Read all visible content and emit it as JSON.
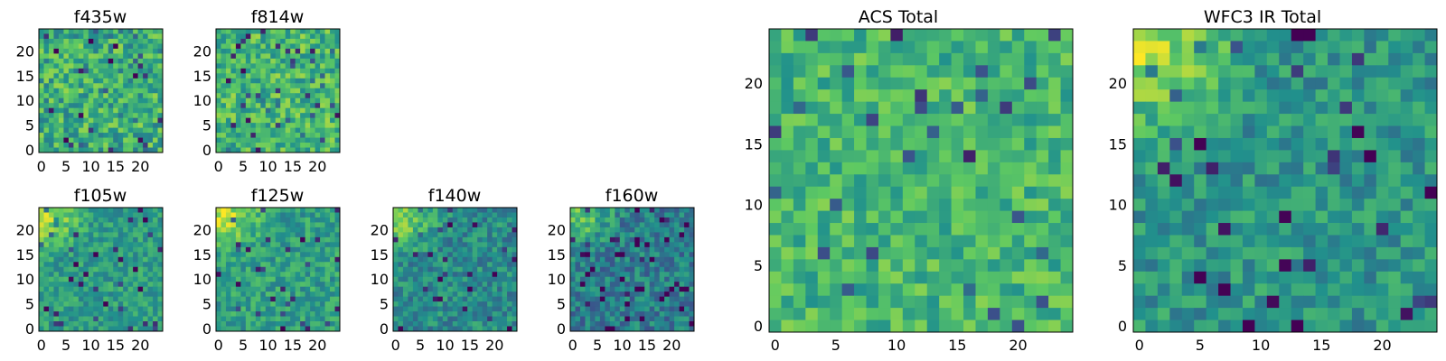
{
  "figure": {
    "colormap": "viridis",
    "colormap_stops": [
      "#440154",
      "#3b528b",
      "#21918c",
      "#5ec962",
      "#fde725"
    ],
    "frame_color": "#000000",
    "background": "#ffffff"
  },
  "chart_data": [
    {
      "type": "heatmap",
      "title": "f435w",
      "grid": [
        25,
        25
      ],
      "xlim": [
        0,
        24
      ],
      "ylim": [
        0,
        24
      ],
      "xticks": [
        "0",
        "5",
        "10",
        "15",
        "20"
      ],
      "yticks": [
        "0",
        "5",
        "10",
        "15",
        "20"
      ],
      "color_range": [
        0,
        1
      ],
      "pattern": "noise",
      "mean_level": 0.62,
      "spread": 0.22,
      "seed": 11
    },
    {
      "type": "heatmap",
      "title": "f814w",
      "grid": [
        25,
        25
      ],
      "xlim": [
        0,
        24
      ],
      "ylim": [
        0,
        24
      ],
      "xticks": [
        "0",
        "5",
        "10",
        "15",
        "20"
      ],
      "yticks": [
        "0",
        "5",
        "10",
        "15",
        "20"
      ],
      "color_range": [
        0,
        1
      ],
      "pattern": "noise",
      "mean_level": 0.66,
      "spread": 0.2,
      "seed": 23
    },
    {
      "type": "heatmap",
      "title": "f105w",
      "grid": [
        25,
        25
      ],
      "xlim": [
        0,
        24
      ],
      "ylim": [
        0,
        24
      ],
      "xticks": [
        "0",
        "5",
        "10",
        "15",
        "20"
      ],
      "yticks": [
        "0",
        "5",
        "10",
        "15",
        "20"
      ],
      "color_range": [
        0,
        1
      ],
      "pattern": "bright-top-left",
      "mean_level": 0.55,
      "spread": 0.14,
      "seed": 37
    },
    {
      "type": "heatmap",
      "title": "f125w",
      "grid": [
        25,
        25
      ],
      "xlim": [
        0,
        24
      ],
      "ylim": [
        0,
        24
      ],
      "xticks": [
        "0",
        "5",
        "10",
        "15",
        "20"
      ],
      "yticks": [
        "0",
        "5",
        "10",
        "15",
        "20"
      ],
      "color_range": [
        0,
        1
      ],
      "pattern": "bright-top-left",
      "mean_level": 0.56,
      "spread": 0.15,
      "seed": 41
    },
    {
      "type": "heatmap",
      "title": "f140w",
      "grid": [
        25,
        25
      ],
      "xlim": [
        0,
        24
      ],
      "ylim": [
        0,
        24
      ],
      "xticks": [
        "0",
        "5",
        "10",
        "15",
        "20"
      ],
      "yticks": [
        "0",
        "5",
        "10",
        "15",
        "20"
      ],
      "color_range": [
        0,
        1
      ],
      "pattern": "bright-top-left",
      "mean_level": 0.48,
      "spread": 0.16,
      "seed": 53
    },
    {
      "type": "heatmap",
      "title": "f160w",
      "grid": [
        25,
        25
      ],
      "xlim": [
        0,
        24
      ],
      "ylim": [
        0,
        24
      ],
      "xticks": [
        "0",
        "5",
        "10",
        "15",
        "20"
      ],
      "yticks": [
        "0",
        "5",
        "10",
        "15",
        "20"
      ],
      "color_range": [
        0,
        1
      ],
      "pattern": "bright-top-left",
      "mean_level": 0.42,
      "spread": 0.17,
      "seed": 67
    },
    {
      "type": "heatmap",
      "title": "ACS Total",
      "grid": [
        25,
        25
      ],
      "xlim": [
        0,
        24
      ],
      "ylim": [
        0,
        24
      ],
      "xticks": [
        "0",
        "5",
        "10",
        "15",
        "20"
      ],
      "yticks": [
        "0",
        "5",
        "10",
        "15",
        "20"
      ],
      "color_range": [
        0,
        1
      ],
      "pattern": "noise",
      "mean_level": 0.66,
      "spread": 0.16,
      "seed": 79
    },
    {
      "type": "heatmap",
      "title": "WFC3 IR Total",
      "grid": [
        25,
        25
      ],
      "xlim": [
        0,
        24
      ],
      "ylim": [
        0,
        24
      ],
      "xticks": [
        "0",
        "5",
        "10",
        "15",
        "20"
      ],
      "yticks": [
        "0",
        "5",
        "10",
        "15",
        "20"
      ],
      "color_range": [
        0,
        1
      ],
      "pattern": "bright-top-left",
      "mean_level": 0.52,
      "spread": 0.15,
      "seed": 97
    }
  ]
}
